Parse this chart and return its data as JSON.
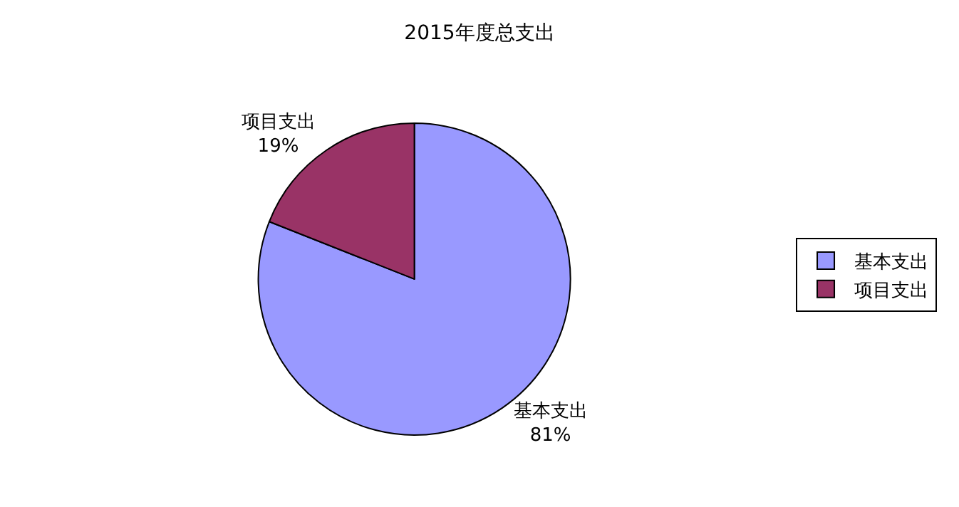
{
  "chart_data": {
    "type": "pie",
    "title": "2015年度总支出",
    "categories": [
      "基本支出",
      "项目支出"
    ],
    "values": [
      81,
      19
    ],
    "value_labels": [
      "81%",
      "19%"
    ],
    "colors": [
      "#9999ff",
      "#993366"
    ],
    "legend": "right"
  }
}
